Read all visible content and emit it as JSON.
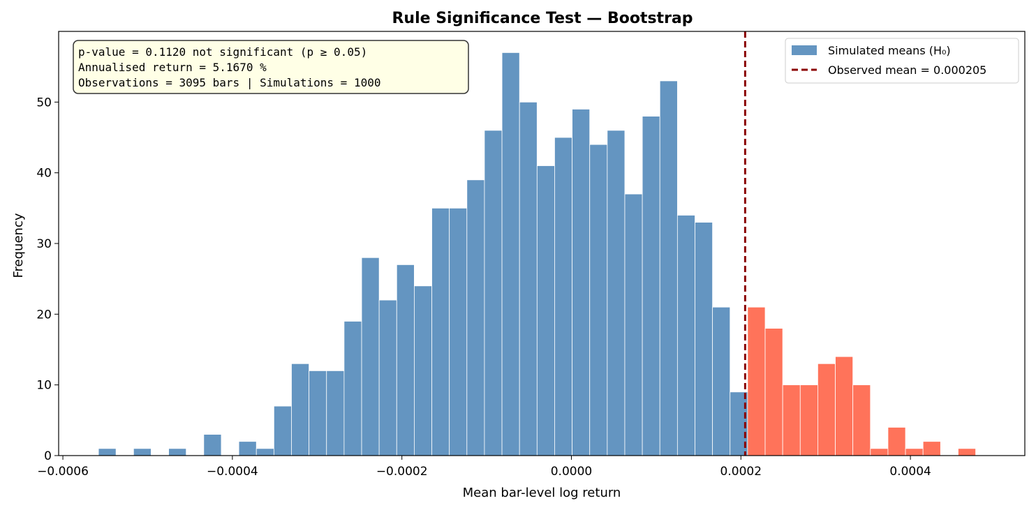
{
  "chart_data": {
    "type": "bar",
    "title": "Rule Significance Test — Bootstrap",
    "xlabel": "Mean bar-level log return",
    "ylabel": "Frequency",
    "xlim": [
      -0.000605,
      0.000535
    ],
    "ylim": [
      0,
      60
    ],
    "x_ticks": [
      {
        "value": -0.0006,
        "label": "−0.0006"
      },
      {
        "value": -0.0004,
        "label": "−0.0004"
      },
      {
        "value": -0.0002,
        "label": "−0.0002"
      },
      {
        "value": 0.0,
        "label": "0.0000"
      },
      {
        "value": 0.0002,
        "label": "0.0002"
      },
      {
        "value": 0.0004,
        "label": "0.0004"
      }
    ],
    "y_ticks": [
      {
        "value": 0,
        "label": "0"
      },
      {
        "value": 10,
        "label": "10"
      },
      {
        "value": 20,
        "label": "20"
      },
      {
        "value": 30,
        "label": "30"
      },
      {
        "value": 40,
        "label": "40"
      },
      {
        "value": 50,
        "label": "50"
      }
    ],
    "bin_start": -0.000558,
    "bin_width": 2.07e-05,
    "series": [
      {
        "name": "Simulated means (H₀)",
        "color": "#6495c1",
        "values": [
          1,
          0,
          1,
          0,
          1,
          0,
          3,
          0,
          2,
          1,
          7,
          13,
          12,
          12,
          19,
          28,
          22,
          27,
          24,
          35,
          35,
          39,
          46,
          57,
          50,
          41,
          45,
          49,
          44,
          46,
          37,
          48,
          53,
          34,
          33,
          21,
          9
        ]
      },
      {
        "name": "",
        "color": "#ff735a",
        "values": [
          21,
          18,
          10,
          10,
          13,
          14,
          10,
          1,
          4,
          1,
          2,
          0,
          1
        ]
      }
    ],
    "observed": {
      "value": 0.000205,
      "label": "Observed mean = 0.000205",
      "color": "#8b0000"
    },
    "legend_position": "top-right",
    "grid": false
  },
  "stats_box": {
    "line1": "p-value = 0.1120  not significant (p ≥ 0.05)",
    "line2": "Annualised return = 5.1670 %",
    "line3": "Observations = 3095 bars   |   Simulations = 1000",
    "background": "#ffffe6"
  }
}
